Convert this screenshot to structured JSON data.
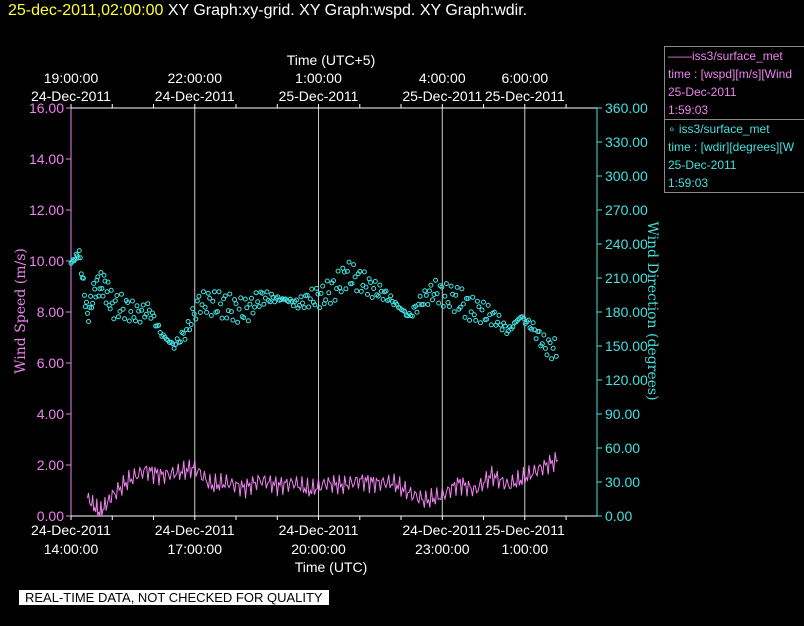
{
  "header": {
    "timestamp": "25-dec-2011,02:00:00",
    "graphs": "XY Graph:xy-grid.  XY Graph:wspd.  XY Graph:wdir."
  },
  "notice": "REAL-TIME DATA, NOT CHECKED FOR QUALITY",
  "legend": [
    {
      "symbol": "——",
      "name": "iss3/surface_met",
      "line2": "time : [wspd][m/s][Wind",
      "line3": "25-Dec-2011",
      "line4": "1:59:03",
      "color": "#ee82ee"
    },
    {
      "symbol": "∘",
      "name": "iss3/surface_met",
      "line2": "time : [wdir][degrees][W",
      "line3": "25-Dec-2011",
      "line4": "1:59:03",
      "color": "#44e0e0"
    }
  ],
  "chart_data": {
    "type": "line",
    "title": "",
    "xlabel_bottom": "Time (UTC)",
    "xlabel_top": "Time (UTC+5)",
    "ylabel_left": "Wind Speed (m/s)",
    "ylabel_right": "Wind Direction (degrees)",
    "ylim_left": [
      0,
      16
    ],
    "ylim_right": [
      0,
      360
    ],
    "grid": "vertical",
    "xlim_hours_utc": [
      "24-Dec-2011 14:00:00",
      "25-Dec-2011 02:00:00"
    ],
    "bottom_ticks": [
      {
        "hour": 14,
        "line1": "24-Dec-2011",
        "line2": "14:00:00"
      },
      {
        "hour": 17,
        "line1": "24-Dec-2011",
        "line2": "17:00:00"
      },
      {
        "hour": 20,
        "line1": "24-Dec-2011",
        "line2": "20:00:00"
      },
      {
        "hour": 23,
        "line1": "24-Dec-2011",
        "line2": "23:00:00"
      },
      {
        "hour": 25,
        "line1": "25-Dec-2011",
        "line2": "1:00:00"
      }
    ],
    "top_ticks": [
      {
        "hour": 14,
        "line1": "19:00:00",
        "line2": "24-Dec-2011"
      },
      {
        "hour": 17,
        "line1": "22:00:00",
        "line2": "24-Dec-2011"
      },
      {
        "hour": 20,
        "line1": "1:00:00",
        "line2": "25-Dec-2011"
      },
      {
        "hour": 23,
        "line1": "4:00:00",
        "line2": "25-Dec-2011"
      },
      {
        "hour": 25,
        "line1": "6:00:00",
        "line2": "25-Dec-2011"
      }
    ],
    "left_ticks": [
      "0.00",
      "2.00",
      "4.00",
      "6.00",
      "8.00",
      "10.00",
      "12.00",
      "14.00",
      "16.00"
    ],
    "right_ticks": [
      "0.00",
      "30.00",
      "60.00",
      "90.00",
      "120.00",
      "150.00",
      "180.00",
      "210.00",
      "240.00",
      "270.00",
      "300.00",
      "330.00",
      "360.00"
    ],
    "series": [
      {
        "name": "iss3/surface_met time : [wspd][m/s]",
        "axis": "left",
        "color": "#ee82ee",
        "style": "line",
        "x_hours": [
          14.4,
          14.7,
          15.0,
          15.4,
          15.8,
          16.2,
          16.6,
          17.0,
          17.4,
          17.8,
          18.2,
          18.6,
          19.0,
          19.4,
          19.8,
          20.2,
          20.6,
          21.0,
          21.4,
          21.8,
          22.2,
          22.6,
          23.0,
          23.4,
          23.8,
          24.2,
          24.6,
          25.0,
          25.4,
          25.8
        ],
        "y": [
          0.7,
          0.1,
          0.8,
          1.4,
          1.8,
          1.6,
          1.7,
          1.9,
          1.2,
          1.3,
          1.1,
          1.4,
          1.2,
          1.3,
          1.0,
          1.3,
          1.2,
          1.4,
          1.3,
          1.3,
          0.9,
          0.6,
          0.8,
          1.3,
          1.0,
          1.6,
          1.2,
          1.5,
          1.9,
          2.2
        ]
      },
      {
        "name": "iss3/surface_met time : [wdir][degrees]",
        "axis": "right",
        "color": "#44e0e0",
        "style": "markers",
        "x_hours": [
          14.0,
          14.2,
          14.4,
          14.6,
          14.8,
          15.0,
          15.3,
          15.6,
          15.9,
          16.2,
          16.5,
          16.8,
          17.1,
          17.4,
          17.7,
          18.0,
          18.3,
          18.6,
          18.9,
          19.2,
          19.5,
          19.8,
          20.1,
          20.4,
          20.7,
          21.0,
          21.3,
          21.6,
          21.9,
          22.2,
          22.5,
          22.8,
          23.1,
          23.4,
          23.7,
          24.0,
          24.3,
          24.6,
          24.9,
          25.2,
          25.5,
          25.8
        ],
        "y": [
          223,
          232,
          176,
          203,
          204,
          186,
          184,
          178,
          182,
          160,
          150,
          163,
          188,
          188,
          186,
          182,
          182,
          193,
          192,
          191,
          187,
          192,
          194,
          201,
          214,
          208,
          201,
          196,
          186,
          176,
          190,
          199,
          194,
          191,
          182,
          180,
          174,
          163,
          176,
          166,
          150,
          146
        ]
      }
    ]
  }
}
